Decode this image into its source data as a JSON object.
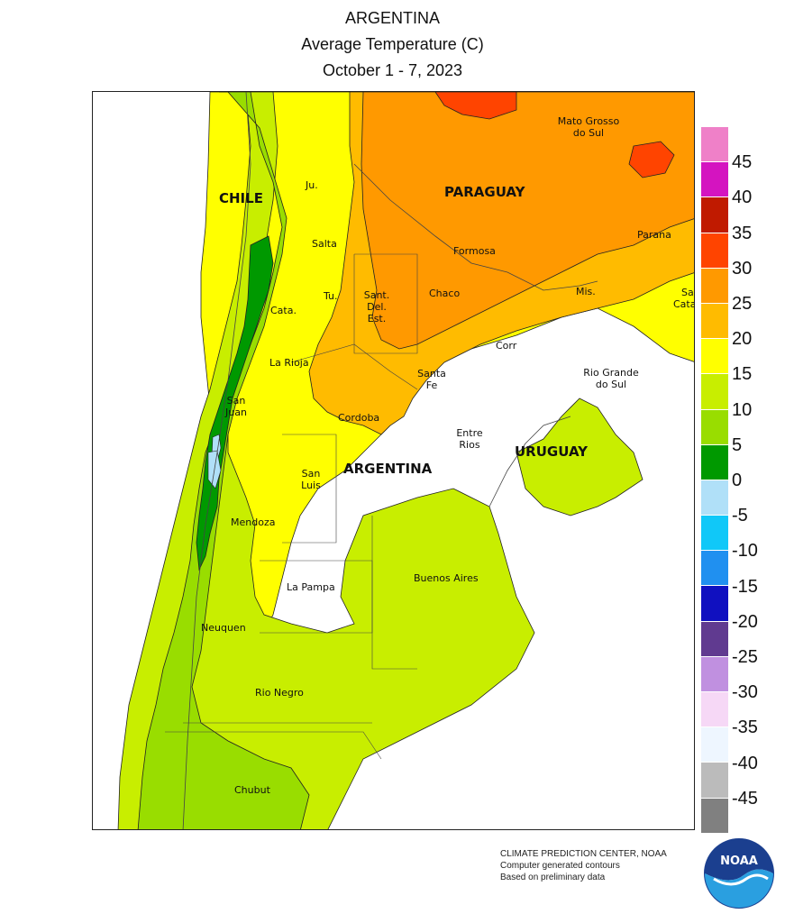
{
  "title": {
    "line1": "ARGENTINA",
    "line2": "Average Temperature (C)",
    "line3": "October 1 - 7, 2023"
  },
  "map_labels": {
    "chile": "CHILE",
    "paraguay": "PARAGUAY",
    "argentina": "ARGENTINA",
    "uruguay": "URUGUAY",
    "mato_grosso_1": "Mato Grosso",
    "mato_grosso_2": "do Sul",
    "jujuy": "Ju.",
    "salta": "Salta",
    "formosa": "Formosa",
    "parana": "Parana",
    "tucuman": "Tu.",
    "chaco": "Chaco",
    "misiones": "Mis.",
    "santa_catarina_1": "Sa",
    "santa_catarina_2": "Cata",
    "catamarca": "Cata.",
    "sant_del_est_1": "Sant.",
    "sant_del_est_2": "Del.",
    "sant_del_est_3": "Est.",
    "corrientes": "Corr",
    "la_rioja": "La Rioja",
    "santa_fe_1": "Santa",
    "santa_fe_2": "Fe",
    "rio_grande_1": "Rio Grande",
    "rio_grande_2": "do Sul",
    "san_juan_1": "San",
    "san_juan_2": "Juan",
    "cordoba": "Cordoba",
    "entre_rios_1": "Entre",
    "entre_rios_2": "Rios",
    "san_luis_1": "San",
    "san_luis_2": "Luis",
    "mendoza": "Mendoza",
    "buenos_aires": "Buenos Aires",
    "la_pampa": "La Pampa",
    "neuquen": "Neuquen",
    "rio_negro": "Rio Negro",
    "chubut": "Chubut"
  },
  "legend": {
    "ticks": [
      "45",
      "40",
      "35",
      "30",
      "25",
      "20",
      "15",
      "10",
      "5",
      "0",
      "-5",
      "-10",
      "-15",
      "-20",
      "-25",
      "-30",
      "-35",
      "-40",
      "-45"
    ],
    "colors": [
      "#ef80c8",
      "#d414c0",
      "#c01a00",
      "#ff4400",
      "#ff9900",
      "#ffbb00",
      "#ffff00",
      "#c8ee00",
      "#99dd00",
      "#009900",
      "#b0e0f8",
      "#10c8f8",
      "#2090f0",
      "#1010c0",
      "#603a90",
      "#c090e0",
      "#f6d8f6",
      "#eef6ff",
      "#bbbbbb",
      "#808080"
    ]
  },
  "credits": {
    "line1": "CLIMATE PREDICTION CENTER, NOAA",
    "line2": "Computer generated contours",
    "line3": "Based on preliminary data"
  },
  "logo": {
    "text": "NOAA"
  }
}
